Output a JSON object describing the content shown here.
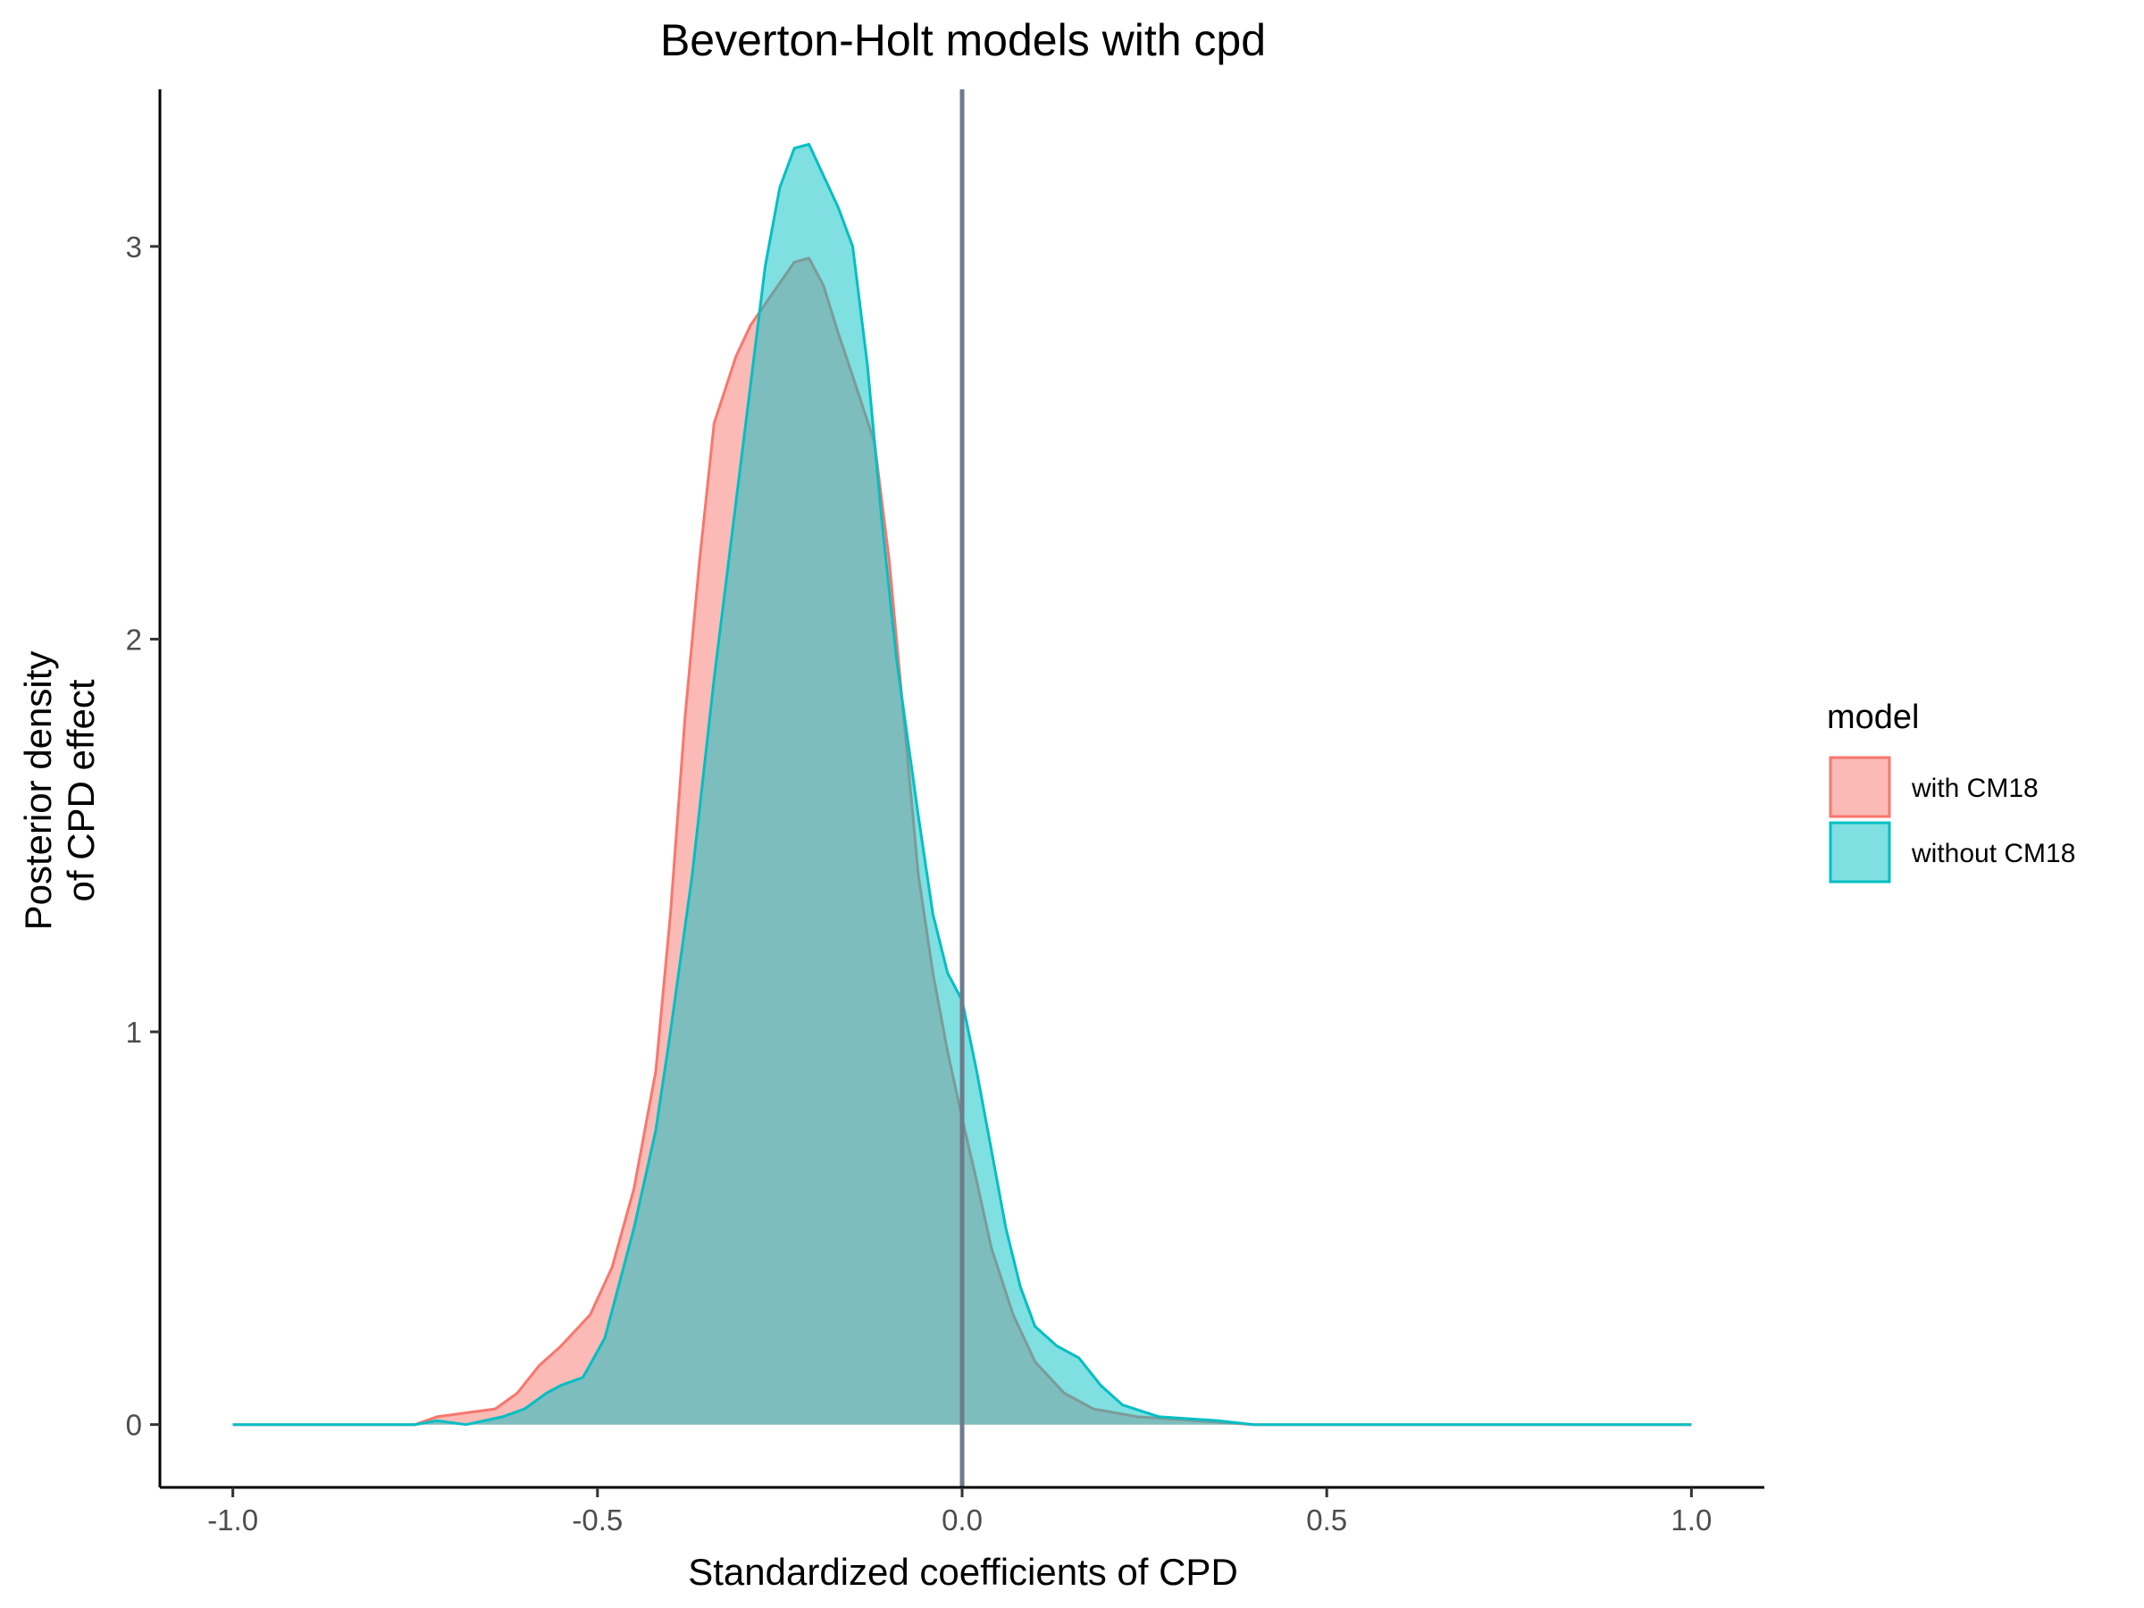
{
  "chart_data": {
    "type": "area",
    "title": "Beverton-Holt models with cpd",
    "xlabel": "Standardized coefficients of CPD",
    "ylabel_lines": [
      "Posterior density",
      "of CPD effect"
    ],
    "xlim": [
      -1.1,
      1.1
    ],
    "ylim": [
      -0.16,
      3.4
    ],
    "x_ticks": [
      -1.0,
      -0.5,
      0.0,
      0.5,
      1.0
    ],
    "x_tick_labels": [
      "-1.0",
      "-0.5",
      "0.0",
      "0.5",
      "1.0"
    ],
    "y_ticks": [
      0,
      1,
      2,
      3
    ],
    "y_tick_labels": [
      "0",
      "1",
      "2",
      "3"
    ],
    "vline_x": 0.0,
    "vline_color": "#6e7b8b",
    "grid": false,
    "legend": {
      "title": "model",
      "position": "right"
    },
    "series": [
      {
        "name": "with CM18",
        "line_color": "#F8766D",
        "fill_color": "#F8766D",
        "points": [
          [
            -1.0,
            0.0
          ],
          [
            -0.75,
            0.0
          ],
          [
            -0.72,
            0.02
          ],
          [
            -0.68,
            0.03
          ],
          [
            -0.64,
            0.04
          ],
          [
            -0.61,
            0.08
          ],
          [
            -0.58,
            0.15
          ],
          [
            -0.55,
            0.2
          ],
          [
            -0.51,
            0.28
          ],
          [
            -0.48,
            0.4
          ],
          [
            -0.45,
            0.6
          ],
          [
            -0.42,
            0.9
          ],
          [
            -0.4,
            1.3
          ],
          [
            -0.38,
            1.8
          ],
          [
            -0.36,
            2.2
          ],
          [
            -0.34,
            2.55
          ],
          [
            -0.31,
            2.72
          ],
          [
            -0.29,
            2.8
          ],
          [
            -0.26,
            2.88
          ],
          [
            -0.23,
            2.96
          ],
          [
            -0.21,
            2.97
          ],
          [
            -0.19,
            2.9
          ],
          [
            -0.17,
            2.78
          ],
          [
            -0.15,
            2.67
          ],
          [
            -0.12,
            2.5
          ],
          [
            -0.1,
            2.2
          ],
          [
            -0.08,
            1.8
          ],
          [
            -0.06,
            1.4
          ],
          [
            -0.04,
            1.15
          ],
          [
            -0.02,
            0.95
          ],
          [
            0.0,
            0.78
          ],
          [
            0.02,
            0.62
          ],
          [
            0.04,
            0.45
          ],
          [
            0.07,
            0.28
          ],
          [
            0.1,
            0.16
          ],
          [
            0.14,
            0.08
          ],
          [
            0.18,
            0.04
          ],
          [
            0.24,
            0.02
          ],
          [
            0.32,
            0.01
          ],
          [
            0.4,
            0.0
          ],
          [
            1.0,
            0.0
          ]
        ]
      },
      {
        "name": "without CM18",
        "line_color": "#00BFC4",
        "fill_color": "#00BFC4",
        "points": [
          [
            -1.0,
            0.0
          ],
          [
            -0.75,
            0.0
          ],
          [
            -0.72,
            0.01
          ],
          [
            -0.68,
            0.0
          ],
          [
            -0.63,
            0.02
          ],
          [
            -0.6,
            0.04
          ],
          [
            -0.57,
            0.08
          ],
          [
            -0.55,
            0.1
          ],
          [
            -0.52,
            0.12
          ],
          [
            -0.49,
            0.22
          ],
          [
            -0.45,
            0.5
          ],
          [
            -0.42,
            0.75
          ],
          [
            -0.4,
            1.0
          ],
          [
            -0.37,
            1.4
          ],
          [
            -0.34,
            1.9
          ],
          [
            -0.31,
            2.35
          ],
          [
            -0.29,
            2.65
          ],
          [
            -0.27,
            2.95
          ],
          [
            -0.25,
            3.15
          ],
          [
            -0.23,
            3.25
          ],
          [
            -0.21,
            3.26
          ],
          [
            -0.19,
            3.18
          ],
          [
            -0.17,
            3.1
          ],
          [
            -0.15,
            3.0
          ],
          [
            -0.13,
            2.7
          ],
          [
            -0.11,
            2.3
          ],
          [
            -0.09,
            1.95
          ],
          [
            -0.06,
            1.55
          ],
          [
            -0.04,
            1.3
          ],
          [
            -0.02,
            1.15
          ],
          [
            0.0,
            1.08
          ],
          [
            0.02,
            0.9
          ],
          [
            0.04,
            0.7
          ],
          [
            0.06,
            0.5
          ],
          [
            0.08,
            0.35
          ],
          [
            0.1,
            0.25
          ],
          [
            0.13,
            0.2
          ],
          [
            0.16,
            0.17
          ],
          [
            0.19,
            0.1
          ],
          [
            0.22,
            0.05
          ],
          [
            0.27,
            0.02
          ],
          [
            0.35,
            0.01
          ],
          [
            0.4,
            0.0
          ],
          [
            1.0,
            0.0
          ]
        ]
      }
    ]
  }
}
